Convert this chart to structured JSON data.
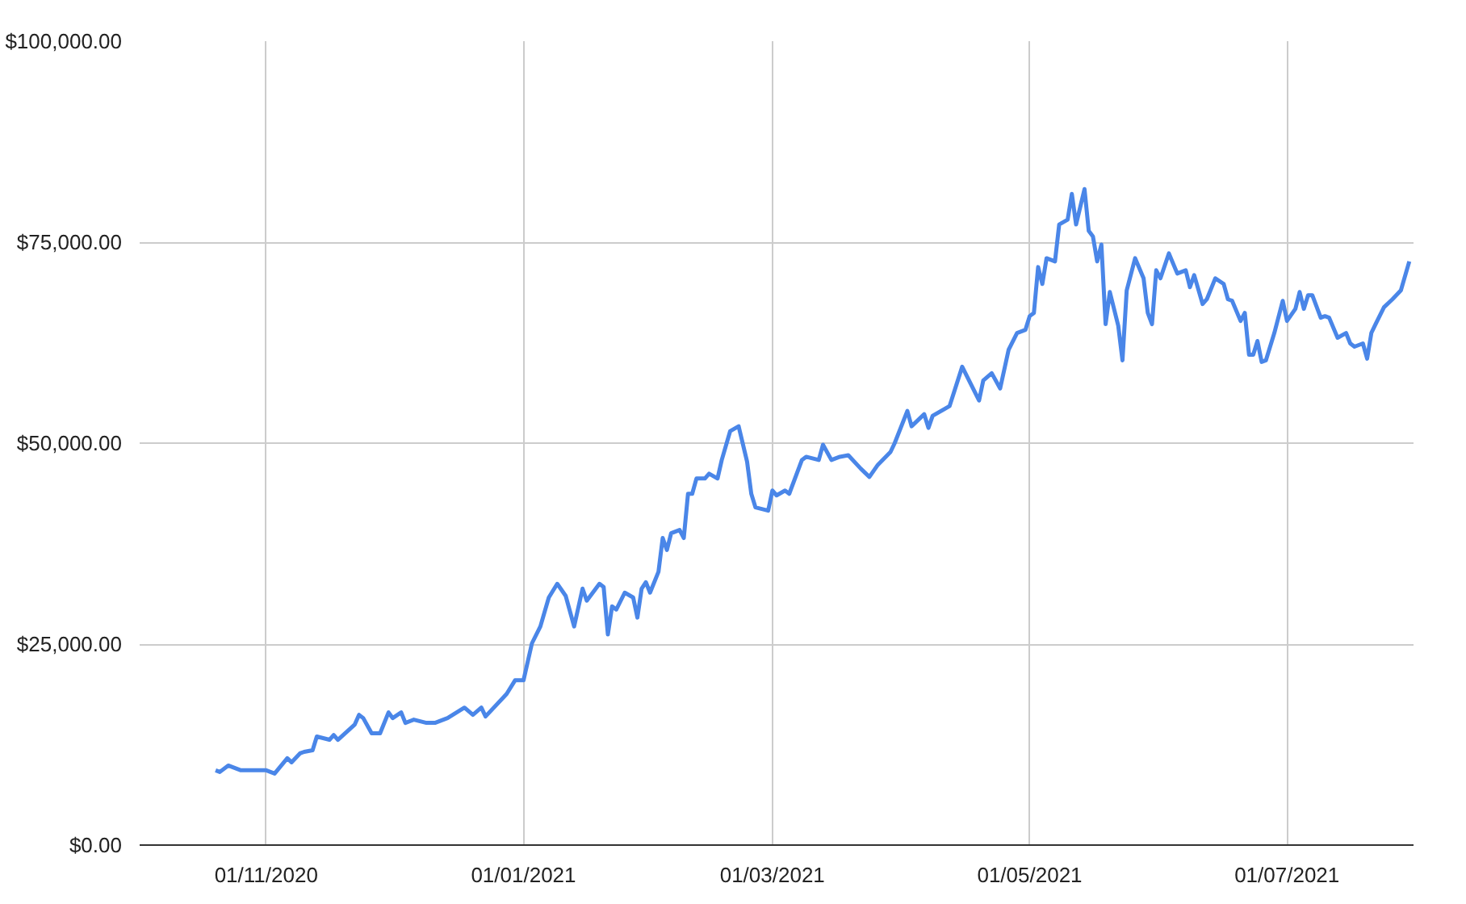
{
  "chart_data": {
    "type": "line",
    "grid": true,
    "marker": "none",
    "line_style": "solid",
    "x": [
      "2020-10-20",
      "2020-10-21",
      "2020-10-23",
      "2020-10-26",
      "2020-11-01",
      "2020-11-03",
      "2020-11-06",
      "2020-11-07",
      "2020-11-09",
      "2020-11-10",
      "2020-11-12",
      "2020-11-13",
      "2020-11-16",
      "2020-11-17",
      "2020-11-18",
      "2020-11-22",
      "2020-11-23",
      "2020-11-24",
      "2020-11-26",
      "2020-11-28",
      "2020-11-30",
      "2020-12-01",
      "2020-12-03",
      "2020-12-04",
      "2020-12-06",
      "2020-12-09",
      "2020-12-11",
      "2020-12-14",
      "2020-12-18",
      "2020-12-20",
      "2020-12-22",
      "2020-12-23",
      "2020-12-28",
      "2020-12-30",
      "2021-01-01",
      "2021-01-03",
      "2021-01-05",
      "2021-01-07",
      "2021-01-09",
      "2021-01-11",
      "2021-01-13",
      "2021-01-15",
      "2021-01-16",
      "2021-01-19",
      "2021-01-20",
      "2021-01-21",
      "2021-01-22",
      "2021-01-23",
      "2021-01-25",
      "2021-01-27",
      "2021-01-28",
      "2021-01-29",
      "2021-01-30",
      "2021-01-31",
      "2021-02-02",
      "2021-02-03",
      "2021-02-04",
      "2021-02-05",
      "2021-02-07",
      "2021-02-08",
      "2021-02-09",
      "2021-02-10",
      "2021-02-11",
      "2021-02-13",
      "2021-02-14",
      "2021-02-16",
      "2021-02-17",
      "2021-02-19",
      "2021-02-21",
      "2021-02-23",
      "2021-02-24",
      "2021-02-25",
      "2021-02-28",
      "2021-03-01",
      "2021-03-02",
      "2021-03-04",
      "2021-03-05",
      "2021-03-08",
      "2021-03-09",
      "2021-03-12",
      "2021-03-13",
      "2021-03-15",
      "2021-03-17",
      "2021-03-19",
      "2021-03-22",
      "2021-03-24",
      "2021-03-26",
      "2021-03-29",
      "2021-03-30",
      "2021-04-02",
      "2021-04-03",
      "2021-04-06",
      "2021-04-07",
      "2021-04-08",
      "2021-04-12",
      "2021-04-15",
      "2021-04-19",
      "2021-04-20",
      "2021-04-22",
      "2021-04-24",
      "2021-04-26",
      "2021-04-28",
      "2021-04-30",
      "2021-05-01",
      "2021-05-02",
      "2021-05-03",
      "2021-05-04",
      "2021-05-05",
      "2021-05-07",
      "2021-05-08",
      "2021-05-10",
      "2021-05-11",
      "2021-05-12",
      "2021-05-14",
      "2021-05-15",
      "2021-05-16",
      "2021-05-17",
      "2021-05-18",
      "2021-05-19",
      "2021-05-20",
      "2021-05-22",
      "2021-05-23",
      "2021-05-24",
      "2021-05-26",
      "2021-05-28",
      "2021-05-29",
      "2021-05-30",
      "2021-05-31",
      "2021-06-01",
      "2021-06-03",
      "2021-06-05",
      "2021-06-07",
      "2021-06-08",
      "2021-06-09",
      "2021-06-11",
      "2021-06-12",
      "2021-06-14",
      "2021-06-16",
      "2021-06-17",
      "2021-06-18",
      "2021-06-20",
      "2021-06-21",
      "2021-06-22",
      "2021-06-23",
      "2021-06-24",
      "2021-06-25",
      "2021-06-26",
      "2021-06-28",
      "2021-06-30",
      "2021-07-01",
      "2021-07-03",
      "2021-07-04",
      "2021-07-05",
      "2021-07-06",
      "2021-07-07",
      "2021-07-09",
      "2021-07-10",
      "2021-07-11",
      "2021-07-13",
      "2021-07-15",
      "2021-07-16",
      "2021-07-17",
      "2021-07-19",
      "2021-07-20",
      "2021-07-21",
      "2021-07-22",
      "2021-07-24",
      "2021-07-26",
      "2021-07-28",
      "2021-07-30"
    ],
    "series": [
      {
        "color": "#4a86e8",
        "values": [
          9300,
          9100,
          9900,
          9300,
          9300,
          8900,
          10800,
          10300,
          11400,
          11600,
          11800,
          13500,
          13100,
          13700,
          13100,
          15000,
          16200,
          15800,
          13900,
          13900,
          16500,
          15800,
          16500,
          15200,
          15600,
          15200,
          15200,
          15800,
          17100,
          16200,
          17100,
          16000,
          18800,
          20500,
          20500,
          25100,
          27200,
          30800,
          32500,
          31000,
          27200,
          31900,
          30400,
          32500,
          32100,
          26200,
          29700,
          29300,
          31400,
          30800,
          28300,
          31900,
          32700,
          31400,
          34000,
          38200,
          36700,
          38800,
          39200,
          38200,
          43700,
          43700,
          45600,
          45600,
          46200,
          45600,
          47900,
          51500,
          52100,
          47700,
          43700,
          42000,
          41600,
          44100,
          43500,
          44100,
          43700,
          47900,
          48300,
          47900,
          49800,
          47900,
          48300,
          48500,
          46800,
          45800,
          47300,
          48900,
          50000,
          54000,
          52100,
          53600,
          51900,
          53400,
          54600,
          59500,
          55300,
          57800,
          58700,
          56800,
          61600,
          63700,
          64100,
          65800,
          66200,
          71900,
          69800,
          73000,
          72600,
          77200,
          77800,
          81000,
          77200,
          81600,
          76400,
          75700,
          72600,
          74700,
          64800,
          68800,
          64600,
          60300,
          69000,
          73000,
          70500,
          66200,
          64800,
          71500,
          70500,
          73600,
          71100,
          71500,
          69400,
          70900,
          67300,
          67900,
          70500,
          69800,
          67900,
          67700,
          65200,
          66200,
          61000,
          61000,
          62700,
          60100,
          60300,
          63700,
          67700,
          65200,
          66700,
          68800,
          66700,
          68400,
          68400,
          65600,
          65800,
          65600,
          63100,
          63700,
          62400,
          62000,
          62400,
          60500,
          63700,
          64800,
          66900,
          67900,
          69000,
          72600
        ]
      }
    ],
    "xlim": [
      "2020-10-02",
      "2021-07-31"
    ],
    "xticks": [
      {
        "value": "2020-11-01",
        "label": "01/11/2020"
      },
      {
        "value": "2021-01-01",
        "label": "01/01/2021"
      },
      {
        "value": "2021-03-01",
        "label": "01/03/2021"
      },
      {
        "value": "2021-05-01",
        "label": "01/05/2021"
      },
      {
        "value": "2021-07-01",
        "label": "01/07/2021"
      }
    ],
    "ylim": [
      0,
      100000
    ],
    "yticks": [
      {
        "value": 0,
        "label": "$0.00"
      },
      {
        "value": 25000,
        "label": "$25,000.00"
      },
      {
        "value": 50000,
        "label": "$50,000.00"
      },
      {
        "value": 75000,
        "label": "$75,000.00"
      },
      {
        "value": 100000,
        "label": "$100,000.00"
      }
    ]
  }
}
